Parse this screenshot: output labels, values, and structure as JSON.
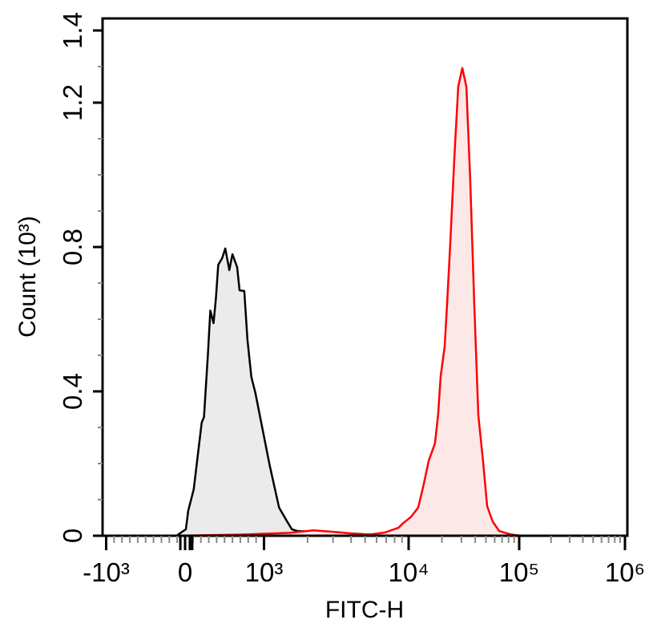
{
  "chart_data": {
    "type": "area",
    "title": "",
    "xlabel": "FITC-H",
    "ylabel": "Count (10³)",
    "x_scale": "biexponential",
    "xlim": [
      -1000,
      1000000
    ],
    "ylim": [
      0,
      1.4
    ],
    "x_ticks": [
      -1000,
      0,
      1000,
      10000,
      100000,
      1000000
    ],
    "x_tick_labels": [
      "-10³",
      "0",
      "10³",
      "10⁴",
      "10⁵",
      "10⁶"
    ],
    "y_ticks": [
      0,
      0.4,
      0.8,
      1.2,
      1.4
    ],
    "y_tick_labels": [
      "0",
      "0.4",
      "0.8",
      "1.2",
      "1.4"
    ],
    "grid": false,
    "legend": "none",
    "series": [
      {
        "color": "#000000",
        "fill": "#ebebeb",
        "x": [
          -110,
          10,
          40,
          110,
          210,
          240,
          290,
          320,
          360,
          390,
          420,
          470,
          510,
          560,
          600,
          660,
          690,
          750,
          790,
          840,
          890,
          1093,
          1271,
          1443,
          1557,
          1700,
          2110,
          2820,
          4120,
          6030,
          7770
        ],
        "y": [
          0,
          0.018,
          0.069,
          0.129,
          0.313,
          0.329,
          0.507,
          0.624,
          0.589,
          0.656,
          0.751,
          0.769,
          0.796,
          0.736,
          0.78,
          0.744,
          0.68,
          0.678,
          0.544,
          0.44,
          0.396,
          0.196,
          0.078,
          0.04,
          0.018,
          0.013,
          0.011,
          0.008,
          0.006,
          0.002,
          0
        ]
      },
      {
        "color": "#ff0000",
        "fill": "#fde8e8",
        "x": [
          -110,
          690,
          1500,
          2190,
          3200,
          4680,
          5310,
          6840,
          8490,
          9160,
          10500,
          12200,
          13500,
          15200,
          17300,
          18500,
          19500,
          21200,
          22300,
          23800,
          25900,
          28100,
          30600,
          33300,
          36100,
          39300,
          42700,
          47200,
          51300,
          57700,
          65900,
          83200,
          103500
        ],
        "y": [
          0,
          0.003,
          0.008,
          0.015,
          0.01,
          0.004,
          0.003,
          0.009,
          0.022,
          0.035,
          0.052,
          0.078,
          0.134,
          0.208,
          0.256,
          0.338,
          0.442,
          0.525,
          0.646,
          0.811,
          1.045,
          1.244,
          1.296,
          1.244,
          0.984,
          0.637,
          0.334,
          0.204,
          0.082,
          0.039,
          0.013,
          0.004,
          0
        ]
      }
    ]
  }
}
